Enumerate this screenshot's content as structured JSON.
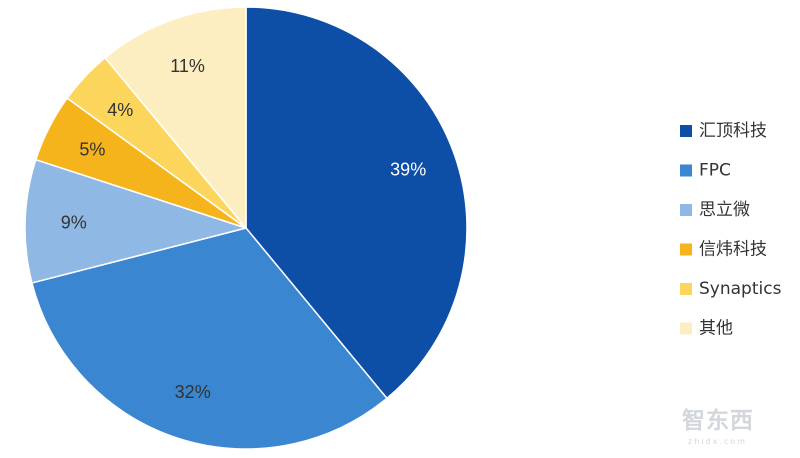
{
  "chart_data": {
    "type": "pie",
    "title": "",
    "categories": [
      "汇顶科技",
      "FPC",
      "思立微",
      "信炜科技",
      "Synaptics",
      "其他"
    ],
    "values": [
      39,
      32,
      9,
      5,
      4,
      11
    ],
    "labels": [
      "39%",
      "32%",
      "9%",
      "5%",
      "4%",
      "11%"
    ],
    "colors": [
      "#0d4ea6",
      "#3a86d0",
      "#8fb9e4",
      "#f6b41c",
      "#fcd65c",
      "#fdeec2"
    ],
    "label_colors": [
      "#ffffff",
      "#333333",
      "#333333",
      "#333333",
      "#333333",
      "#333333"
    ],
    "start_angle": "12 o'clock",
    "direction": "clockwise",
    "legend_position": "right"
  },
  "watermark": {
    "logo_text": "智东西",
    "url_text": "zhidx.com"
  }
}
